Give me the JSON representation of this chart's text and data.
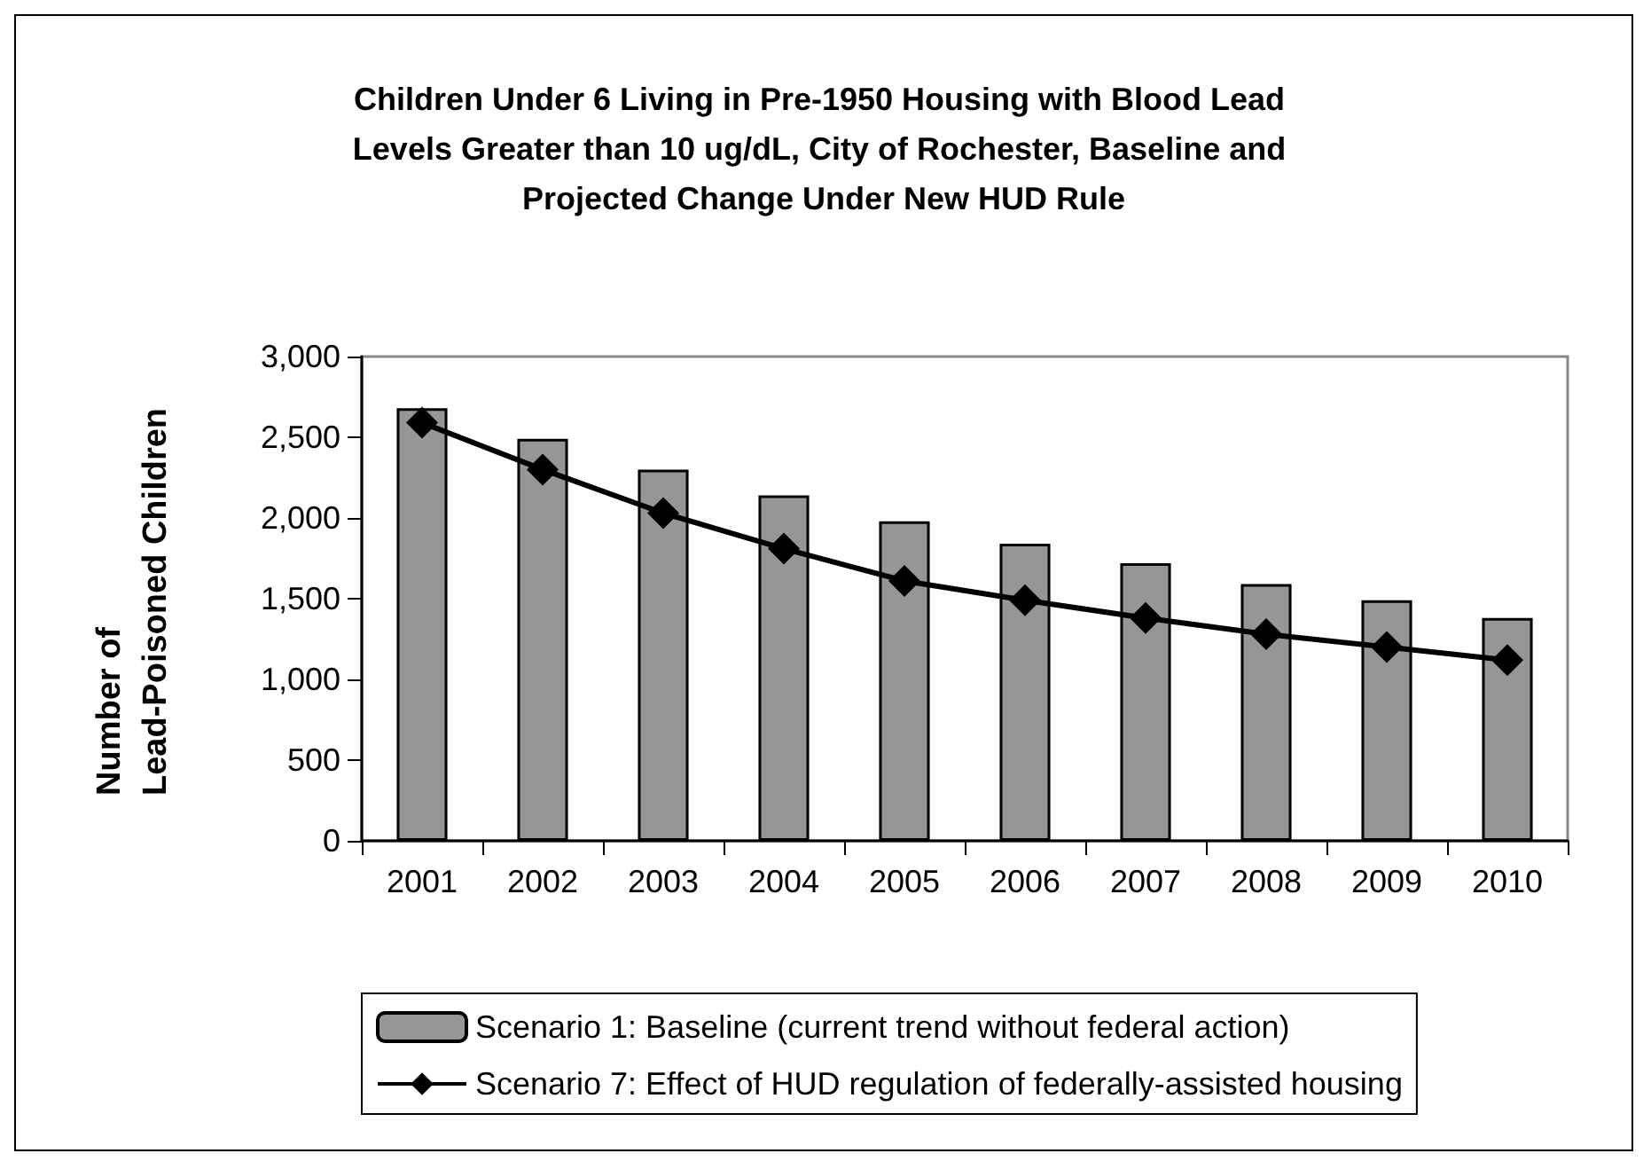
{
  "chart_data": {
    "type": "bar",
    "title": "Children Under 6 Living in Pre-1950 Housing with Blood Lead Levels Greater than 10 ug/dL, City of Rochester, Baseline and Projected Change Under New HUD Rule",
    "ylabel": "Number of Lead-Poisoned Children",
    "categories": [
      "2001",
      "2002",
      "2003",
      "2004",
      "2005",
      "2006",
      "2007",
      "2008",
      "2009",
      "2010"
    ],
    "series": [
      {
        "name": "Scenario 1: Baseline (current trend without federal action)",
        "color": "#969696",
        "values": [
          2680,
          2490,
          2300,
          2140,
          1980,
          1840,
          1720,
          1590,
          1490,
          1380
        ]
      },
      {
        "name": "Scenario 7: Effect of HUD regulation of federally-assisted housing",
        "type": "line",
        "color": "#000000",
        "marker": "diamond",
        "values": [
          2590,
          2300,
          2030,
          1810,
          1610,
          1490,
          1380,
          1280,
          1200,
          1120
        ]
      }
    ],
    "ylim": [
      0,
      3000
    ],
    "yticks": [
      0,
      500,
      {
        "value": 1000,
        "label": "1,000"
      },
      {
        "value": 1500,
        "label": "1,500"
      },
      {
        "value": 2000,
        "label": "2,000"
      },
      {
        "value": 2500,
        "label": "2,500"
      },
      {
        "value": 3000,
        "label": "3,000"
      }
    ],
    "grid": false,
    "legend": "bottom"
  }
}
